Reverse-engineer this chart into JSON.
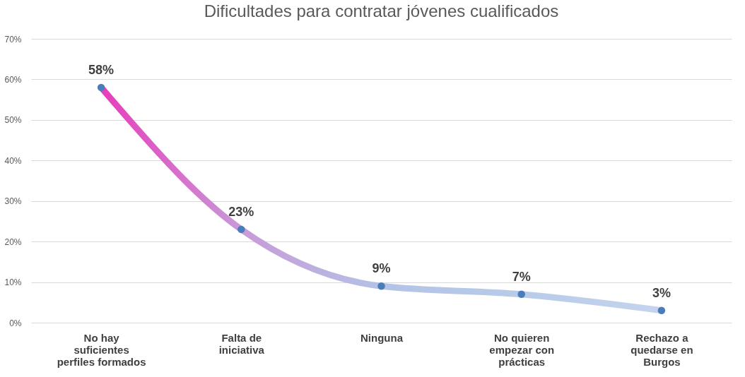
{
  "chart_data": {
    "type": "line",
    "title": "Dificultades para contratar jóvenes cualificados",
    "categories": [
      "No hay suficientes perfiles formados",
      "Falta de iniciativa",
      "Ninguna",
      "No quieren empezar con prácticas",
      "Rechazo a quedarse en Burgos"
    ],
    "series": [
      {
        "color": "#4a7ebb",
        "colors": [
          "#e83cbc",
          "#c89ad8",
          "#b3c3e6",
          "#b8cbe8",
          "#c4d4ee"
        ],
        "values": [
          58,
          23,
          9,
          7,
          3
        ],
        "value_labels": [
          "58%",
          "23%",
          "9%",
          "7%",
          "3%"
        ]
      }
    ],
    "ylim": [
      0,
      70
    ],
    "yticks": [
      {
        "value": 0,
        "label": "0%"
      },
      {
        "value": 10,
        "label": "10%"
      },
      {
        "value": 20,
        "label": "20%"
      },
      {
        "value": 30,
        "label": "30%"
      },
      {
        "value": 40,
        "label": "40%"
      },
      {
        "value": 50,
        "label": "50%"
      },
      {
        "value": 60,
        "label": "60%"
      },
      {
        "value": 70,
        "label": "70%"
      }
    ],
    "grid": "y",
    "marker": "circle",
    "line_style": "solid"
  }
}
